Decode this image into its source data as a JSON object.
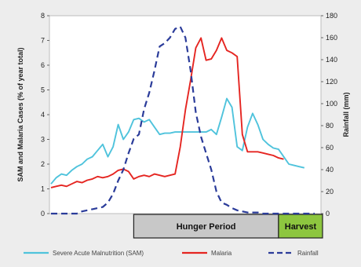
{
  "chart_data": {
    "type": "line",
    "title": "",
    "ylabel_left": "SAM and Malaria Cases (% of year total)",
    "ylabel_right": "Rainfall (mm)",
    "ylim_left": [
      0,
      8
    ],
    "ylim_right": [
      0,
      180
    ],
    "yticks_left": [
      "0",
      "1",
      "2",
      "3",
      "4",
      "5",
      "6",
      "7",
      "8"
    ],
    "yticks_right": [
      "0",
      "20",
      "40",
      "60",
      "80",
      "100",
      "120",
      "140",
      "160",
      "180"
    ],
    "x": [
      0,
      1,
      2,
      3,
      4,
      5,
      6,
      7,
      8,
      9,
      10,
      11,
      12,
      13,
      14,
      15,
      16,
      17,
      18,
      19,
      20,
      21,
      22,
      23,
      24,
      25,
      26,
      27,
      28,
      29,
      30,
      31,
      32,
      33,
      34,
      35,
      36,
      37,
      38,
      39,
      40,
      41,
      42,
      43,
      44,
      45,
      46,
      47,
      48,
      49,
      50,
      51
    ],
    "series": [
      {
        "name": "Severe Acute Malnutrition (SAM)",
        "axis": "left",
        "color": "#4fc3dc",
        "dash": "",
        "values": [
          1.2,
          1.45,
          1.6,
          1.55,
          1.75,
          1.9,
          2.0,
          2.2,
          2.3,
          2.55,
          2.8,
          2.3,
          2.7,
          3.6,
          3.0,
          3.3,
          3.8,
          3.85,
          3.7,
          3.8,
          3.5,
          3.2,
          3.25,
          3.25,
          3.3,
          3.3,
          3.3,
          3.3,
          3.3,
          3.3,
          3.3,
          3.4,
          3.2,
          3.9,
          4.65,
          4.3,
          2.7,
          2.55,
          3.5,
          4.05,
          3.6,
          3.0,
          2.8,
          2.65,
          2.6,
          2.3,
          2.0,
          1.95,
          1.9,
          1.85,
          1.8,
          1.8
        ],
        "visible_count": 50
      },
      {
        "name": "Malaria",
        "axis": "left",
        "color": "#e52521",
        "dash": "",
        "values": [
          1.05,
          1.1,
          1.15,
          1.1,
          1.2,
          1.3,
          1.25,
          1.35,
          1.4,
          1.5,
          1.45,
          1.5,
          1.6,
          1.75,
          1.8,
          1.7,
          1.4,
          1.5,
          1.55,
          1.5,
          1.6,
          1.55,
          1.5,
          1.55,
          1.6,
          2.7,
          4.2,
          5.4,
          6.7,
          7.1,
          6.2,
          6.25,
          6.6,
          7.1,
          6.6,
          6.5,
          6.35,
          3.2,
          2.5,
          2.5,
          2.5,
          2.45,
          2.4,
          2.35,
          2.25,
          2.2,
          2.15,
          2.1,
          2.1,
          2.1,
          2.1,
          2.1
        ],
        "visible_count": 46
      },
      {
        "name": "Rainfall",
        "axis": "right",
        "color": "#2b3c9a",
        "dash": "8,5",
        "values": [
          0,
          0,
          0,
          0,
          0,
          0,
          2,
          3,
          4,
          5,
          6,
          10,
          18,
          30,
          40,
          55,
          68,
          72,
          95,
          110,
          130,
          152,
          155,
          160,
          168,
          170,
          160,
          130,
          92,
          70,
          55,
          40,
          20,
          10,
          8,
          5,
          3,
          2,
          1,
          1,
          1,
          0,
          0,
          0,
          0,
          0,
          0,
          0,
          0,
          0,
          0,
          0
        ],
        "visible_count": 52
      }
    ],
    "bands": [
      {
        "label": "Hunger Period",
        "color": "#c8c8c8",
        "x_start": 16,
        "x_end": 44
      },
      {
        "label": "Harvest",
        "color": "#8dc63f",
        "x_start": 44,
        "x_end": 52
      }
    ],
    "legend_position": "bottom",
    "grid": false
  }
}
